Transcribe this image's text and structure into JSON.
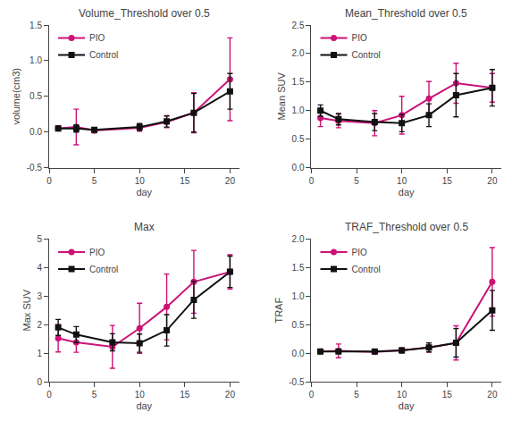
{
  "chart_data": [
    {
      "type": "line",
      "title": "Volume_Threshold over 0.5",
      "x_label": "day",
      "y_label": "volume(cm3)",
      "x": [
        1,
        3,
        5,
        10,
        13,
        16,
        20
      ],
      "series": [
        {
          "name": "PIO",
          "color": "#CC1177",
          "marker": "circle",
          "values": [
            0.05,
            0.07,
            0.02,
            0.06,
            0.14,
            0.27,
            0.74
          ],
          "yerr": [
            0.03,
            0.25,
            0.03,
            0.05,
            0.08,
            0.28,
            0.58
          ]
        },
        {
          "name": "Control",
          "color": "#111111",
          "marker": "square",
          "values": [
            0.05,
            0.05,
            0.03,
            0.07,
            0.15,
            0.27,
            0.57
          ],
          "yerr": [
            0.03,
            0.05,
            0.02,
            0.05,
            0.08,
            0.27,
            0.25
          ]
        }
      ],
      "xlim": [
        0,
        21
      ],
      "xticks": [
        0,
        5,
        10,
        15,
        20
      ],
      "ylim": [
        -0.5,
        1.5
      ],
      "yticks": [
        -0.5,
        {
          "value": 0,
          "label": "0.0"
        },
        0.5,
        {
          "value": 1,
          "label": "1.0"
        },
        1.5
      ],
      "grid": false,
      "legend": "upper left"
    },
    {
      "type": "line",
      "title": "Mean_Threshold over 0.5",
      "x_label": "day",
      "y_label": "Mean SUV",
      "x": [
        1,
        3,
        7,
        10,
        13,
        16,
        20
      ],
      "series": [
        {
          "name": "PIO",
          "color": "#CC1177",
          "marker": "circle",
          "values": [
            0.87,
            0.82,
            0.78,
            0.92,
            1.21,
            1.48,
            1.4
          ],
          "yerr": [
            0.15,
            0.12,
            0.22,
            0.33,
            0.3,
            0.35,
            0.25
          ]
        },
        {
          "name": "Control",
          "color": "#111111",
          "marker": "square",
          "values": [
            1.0,
            0.85,
            0.8,
            0.78,
            0.92,
            1.27,
            1.4
          ],
          "yerr": [
            0.1,
            0.1,
            0.15,
            0.15,
            0.2,
            0.38,
            0.32
          ]
        }
      ],
      "xlim": [
        0,
        21
      ],
      "xticks": [
        0,
        5,
        10,
        15,
        20
      ],
      "ylim": [
        0.0,
        2.5
      ],
      "yticks": [
        {
          "value": 0,
          "label": "0.0"
        },
        0.5,
        {
          "value": 1,
          "label": "1.0"
        },
        1.5,
        {
          "value": 2,
          "label": "2.0"
        },
        2.5
      ],
      "grid": false,
      "legend": "upper left"
    },
    {
      "type": "line",
      "title": "Max",
      "x_label": "day",
      "y_label": "Max SUV",
      "x": [
        1,
        3,
        7,
        10,
        13,
        16,
        20
      ],
      "series": [
        {
          "name": "PIO",
          "color": "#CC1177",
          "marker": "circle",
          "values": [
            1.52,
            1.38,
            1.22,
            1.87,
            2.62,
            3.5,
            3.85
          ],
          "yerr": [
            0.48,
            0.35,
            0.75,
            0.88,
            1.15,
            1.1,
            0.6
          ]
        },
        {
          "name": "Control",
          "color": "#111111",
          "marker": "square",
          "values": [
            1.9,
            1.65,
            1.38,
            1.35,
            1.8,
            2.87,
            3.85
          ],
          "yerr": [
            0.28,
            0.28,
            0.3,
            0.32,
            0.55,
            0.65,
            0.55
          ]
        }
      ],
      "xlim": [
        0,
        21
      ],
      "xticks": [
        0,
        5,
        10,
        15,
        20
      ],
      "ylim": [
        0,
        5
      ],
      "yticks": [
        0,
        1,
        2,
        3,
        4,
        5
      ],
      "grid": false,
      "legend": "upper left"
    },
    {
      "type": "line",
      "title": "TRAF_Threshold over 0.5",
      "x_label": "day",
      "y_label": "TRAF",
      "x": [
        1,
        3,
        7,
        10,
        13,
        16,
        20
      ],
      "series": [
        {
          "name": "PIO",
          "color": "#CC1177",
          "marker": "circle",
          "values": [
            0.03,
            0.04,
            0.02,
            0.05,
            0.1,
            0.18,
            1.25
          ],
          "yerr": [
            0.02,
            0.12,
            0.02,
            0.04,
            0.08,
            0.3,
            0.6
          ]
        },
        {
          "name": "Control",
          "color": "#111111",
          "marker": "square",
          "values": [
            0.03,
            0.03,
            0.03,
            0.05,
            0.1,
            0.18,
            0.75
          ],
          "yerr": [
            0.02,
            0.02,
            0.03,
            0.04,
            0.08,
            0.25,
            0.35
          ]
        }
      ],
      "xlim": [
        0,
        21
      ],
      "xticks": [
        0,
        5,
        10,
        15,
        20
      ],
      "ylim": [
        -0.5,
        2.0
      ],
      "yticks": [
        -0.5,
        {
          "value": 0,
          "label": "0.0"
        },
        0.5,
        {
          "value": 1,
          "label": "1.0"
        },
        1.5,
        {
          "value": 2,
          "label": "2.0"
        }
      ],
      "grid": false,
      "legend": "upper left"
    }
  ]
}
